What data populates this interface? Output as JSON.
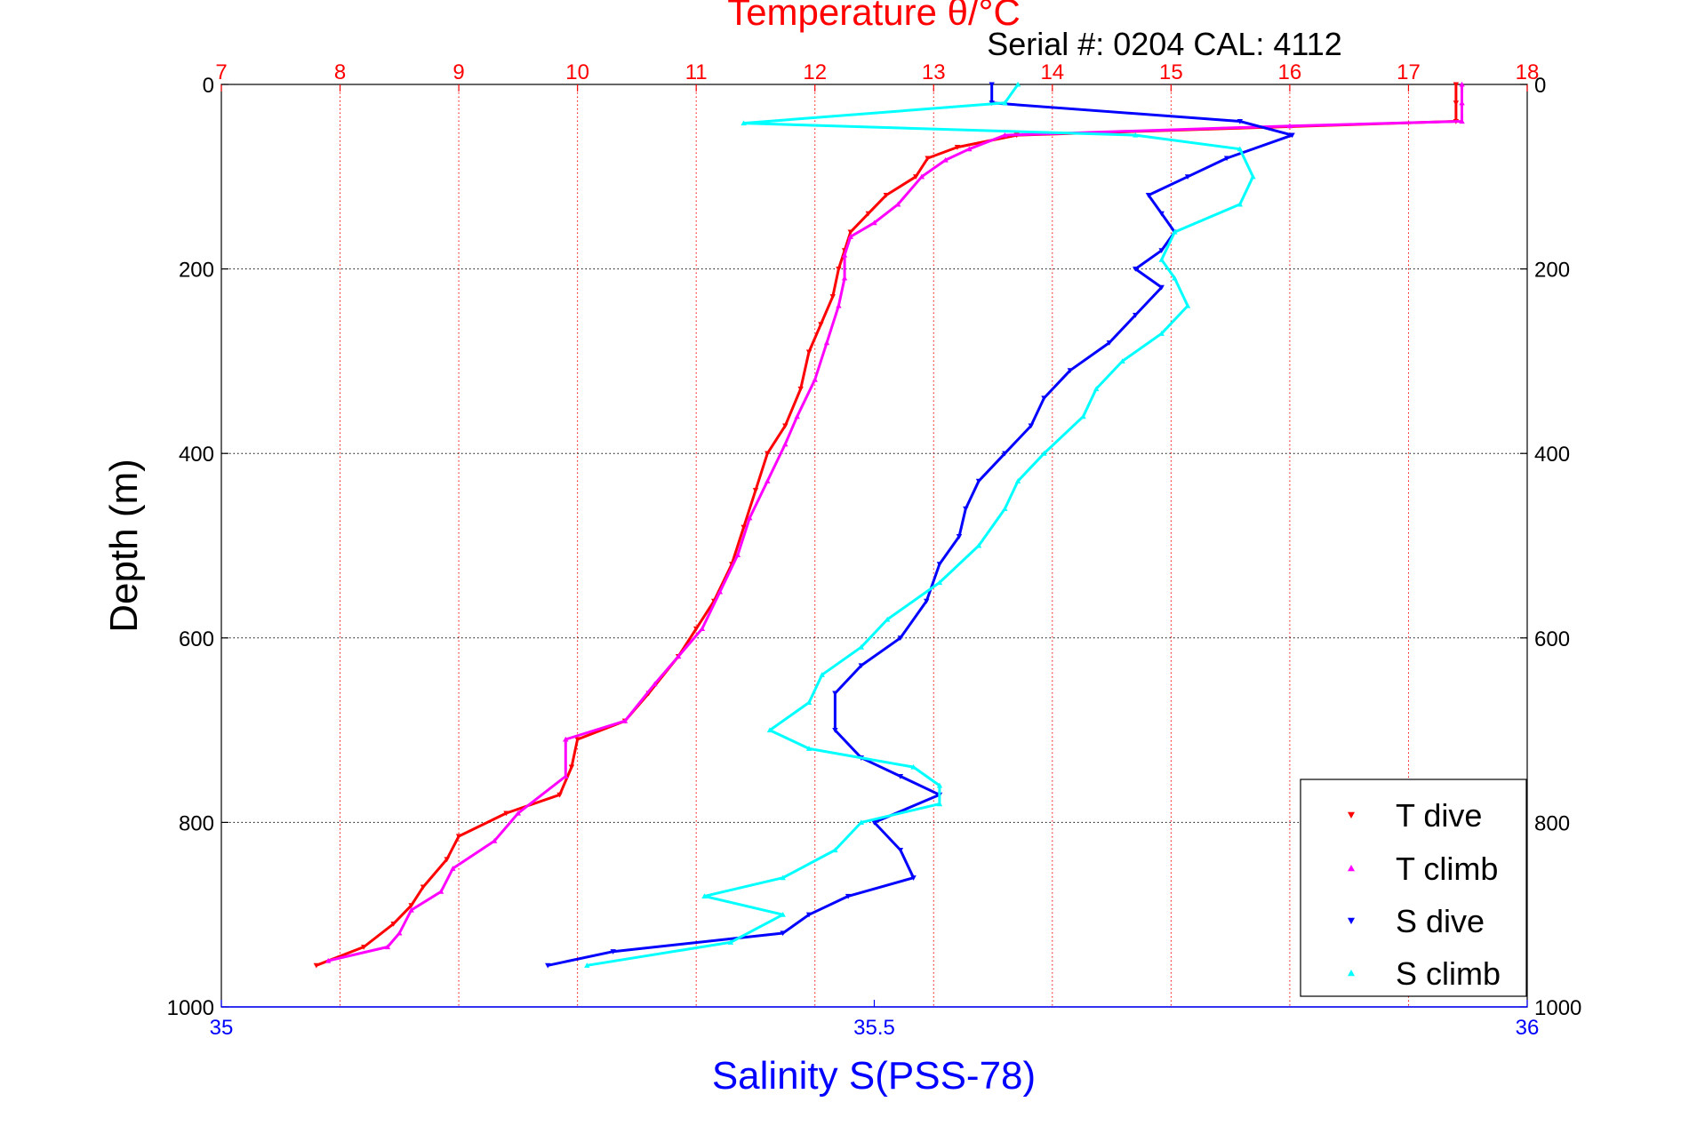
{
  "chart_data": {
    "type": "scatter",
    "title": "Temperature θ/°C",
    "subtitle": "Serial #: 0204  CAL: 4112",
    "ylabel": "Depth (m)",
    "xlabel": "Salinity S(PSS-78)",
    "top_axis": {
      "label": "Temperature θ/°C",
      "range": [
        7,
        18
      ],
      "ticks": [
        "7",
        "8",
        "9",
        "10",
        "11",
        "12",
        "13",
        "14",
        "15",
        "16",
        "17",
        "18"
      ],
      "color": "#ff0000"
    },
    "bottom_axis": {
      "label": "Salinity S(PSS-78)",
      "range": [
        35,
        36
      ],
      "ticks": [
        "35",
        "35.5",
        "36"
      ],
      "color": "#0000ff"
    },
    "y_axis": {
      "range": [
        0,
        1000
      ],
      "reversed": true,
      "ticks": [
        "0",
        "200",
        "400",
        "600",
        "800",
        "1000"
      ]
    },
    "grid": true,
    "legend_position": "bottom-right",
    "series": [
      {
        "name": "T dive",
        "axis": "temperature",
        "color": "#ff0000",
        "marker": "triangle-down",
        "points": [
          [
            17.4,
            0
          ],
          [
            17.4,
            20
          ],
          [
            17.4,
            40
          ],
          [
            13.7,
            55
          ],
          [
            13.2,
            68
          ],
          [
            12.95,
            80
          ],
          [
            12.85,
            100
          ],
          [
            12.6,
            120
          ],
          [
            12.45,
            140
          ],
          [
            12.3,
            160
          ],
          [
            12.25,
            180
          ],
          [
            12.2,
            200
          ],
          [
            12.15,
            230
          ],
          [
            12.05,
            260
          ],
          [
            11.95,
            290
          ],
          [
            11.88,
            330
          ],
          [
            11.75,
            370
          ],
          [
            11.6,
            400
          ],
          [
            11.5,
            440
          ],
          [
            11.4,
            480
          ],
          [
            11.3,
            520
          ],
          [
            11.15,
            560
          ],
          [
            11.0,
            590
          ],
          [
            10.85,
            620
          ],
          [
            10.6,
            660
          ],
          [
            10.4,
            690
          ],
          [
            10.0,
            710
          ],
          [
            9.95,
            740
          ],
          [
            9.85,
            770
          ],
          [
            9.4,
            790
          ],
          [
            9.0,
            815
          ],
          [
            8.9,
            840
          ],
          [
            8.7,
            870
          ],
          [
            8.6,
            890
          ],
          [
            8.45,
            910
          ],
          [
            8.2,
            935
          ],
          [
            7.8,
            955
          ]
        ]
      },
      {
        "name": "T climb",
        "axis": "temperature",
        "color": "#ff00ff",
        "marker": "triangle-up",
        "points": [
          [
            17.45,
            0
          ],
          [
            17.45,
            20
          ],
          [
            17.45,
            40
          ],
          [
            16.0,
            45
          ],
          [
            13.6,
            55
          ],
          [
            13.3,
            70
          ],
          [
            13.1,
            82
          ],
          [
            12.9,
            100
          ],
          [
            12.7,
            130
          ],
          [
            12.5,
            150
          ],
          [
            12.3,
            165
          ],
          [
            12.25,
            185
          ],
          [
            12.25,
            210
          ],
          [
            12.2,
            240
          ],
          [
            12.1,
            280
          ],
          [
            12.0,
            320
          ],
          [
            11.85,
            360
          ],
          [
            11.75,
            390
          ],
          [
            11.6,
            430
          ],
          [
            11.45,
            470
          ],
          [
            11.35,
            510
          ],
          [
            11.2,
            550
          ],
          [
            11.05,
            590
          ],
          [
            10.85,
            620
          ],
          [
            10.65,
            650
          ],
          [
            10.4,
            690
          ],
          [
            9.9,
            710
          ],
          [
            9.9,
            750
          ],
          [
            9.5,
            790
          ],
          [
            9.3,
            820
          ],
          [
            8.95,
            850
          ],
          [
            8.85,
            875
          ],
          [
            8.6,
            895
          ],
          [
            8.5,
            920
          ],
          [
            8.4,
            935
          ],
          [
            7.9,
            950
          ]
        ]
      },
      {
        "name": "S dive",
        "axis": "salinity",
        "color": "#0000ff",
        "marker": "triangle-down",
        "points": [
          [
            35.59,
            0
          ],
          [
            35.59,
            20
          ],
          [
            35.78,
            40
          ],
          [
            35.82,
            55
          ],
          [
            35.77,
            80
          ],
          [
            35.74,
            100
          ],
          [
            35.71,
            120
          ],
          [
            35.72,
            140
          ],
          [
            35.73,
            160
          ],
          [
            35.72,
            180
          ],
          [
            35.7,
            200
          ],
          [
            35.72,
            220
          ],
          [
            35.7,
            250
          ],
          [
            35.68,
            280
          ],
          [
            35.65,
            310
          ],
          [
            35.63,
            340
          ],
          [
            35.62,
            370
          ],
          [
            35.6,
            400
          ],
          [
            35.58,
            430
          ],
          [
            35.57,
            460
          ],
          [
            35.565,
            490
          ],
          [
            35.55,
            520
          ],
          [
            35.54,
            560
          ],
          [
            35.52,
            600
          ],
          [
            35.49,
            630
          ],
          [
            35.47,
            660
          ],
          [
            35.47,
            700
          ],
          [
            35.49,
            730
          ],
          [
            35.52,
            750
          ],
          [
            35.55,
            770
          ],
          [
            35.5,
            800
          ],
          [
            35.52,
            830
          ],
          [
            35.53,
            860
          ],
          [
            35.48,
            880
          ],
          [
            35.45,
            900
          ],
          [
            35.43,
            920
          ],
          [
            35.3,
            940
          ],
          [
            35.25,
            955
          ]
        ]
      },
      {
        "name": "S climb",
        "axis": "salinity",
        "color": "#00ffff",
        "marker": "triangle-up",
        "points": [
          [
            35.61,
            0
          ],
          [
            35.6,
            20
          ],
          [
            35.4,
            42
          ],
          [
            35.7,
            55
          ],
          [
            35.78,
            70
          ],
          [
            35.79,
            100
          ],
          [
            35.78,
            130
          ],
          [
            35.73,
            160
          ],
          [
            35.72,
            190
          ],
          [
            35.73,
            210
          ],
          [
            35.74,
            240
          ],
          [
            35.72,
            270
          ],
          [
            35.69,
            300
          ],
          [
            35.67,
            330
          ],
          [
            35.66,
            360
          ],
          [
            35.63,
            400
          ],
          [
            35.61,
            430
          ],
          [
            35.6,
            460
          ],
          [
            35.58,
            500
          ],
          [
            35.55,
            540
          ],
          [
            35.51,
            580
          ],
          [
            35.49,
            610
          ],
          [
            35.46,
            640
          ],
          [
            35.45,
            670
          ],
          [
            35.42,
            700
          ],
          [
            35.45,
            720
          ],
          [
            35.53,
            740
          ],
          [
            35.55,
            760
          ],
          [
            35.55,
            780
          ],
          [
            35.49,
            800
          ],
          [
            35.47,
            830
          ],
          [
            35.43,
            860
          ],
          [
            35.37,
            880
          ],
          [
            35.43,
            900
          ],
          [
            35.39,
            930
          ],
          [
            35.28,
            955
          ]
        ]
      }
    ]
  }
}
